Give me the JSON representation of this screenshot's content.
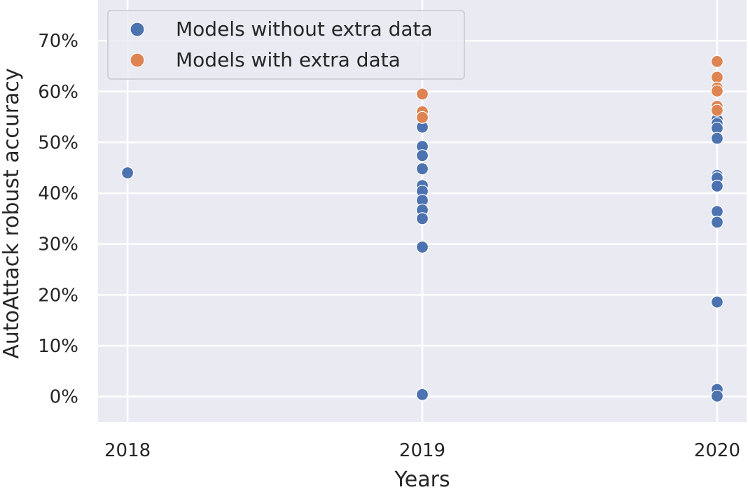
{
  "chart_data": {
    "type": "scatter",
    "xlabel": "Years",
    "ylabel": "AutoAttack robust accuracy",
    "x_ticks": [
      "2018",
      "2019",
      "2020"
    ],
    "y_ticks": [
      "0%",
      "10%",
      "20%",
      "30%",
      "40%",
      "50%",
      "60%",
      "70%"
    ],
    "y_tick_values": [
      0,
      10,
      20,
      30,
      40,
      50,
      60,
      70
    ],
    "xlim": [
      2017.9,
      2020.1
    ],
    "ylim": [
      -5,
      78
    ],
    "grid": true,
    "legend_position": "top-left",
    "series": [
      {
        "name": "Models without extra data",
        "color": "#4c72b0",
        "points": [
          {
            "x": 2018,
            "y": 44.0
          },
          {
            "x": 2019,
            "y": 53.0
          },
          {
            "x": 2019,
            "y": 49.2
          },
          {
            "x": 2019,
            "y": 47.4
          },
          {
            "x": 2019,
            "y": 44.8
          },
          {
            "x": 2019,
            "y": 41.5
          },
          {
            "x": 2019,
            "y": 40.4
          },
          {
            "x": 2019,
            "y": 38.6
          },
          {
            "x": 2019,
            "y": 36.7
          },
          {
            "x": 2019,
            "y": 35.0
          },
          {
            "x": 2019,
            "y": 29.4
          },
          {
            "x": 2019,
            "y": 0.4
          },
          {
            "x": 2020,
            "y": 54.5
          },
          {
            "x": 2020,
            "y": 53.7
          },
          {
            "x": 2020,
            "y": 52.8
          },
          {
            "x": 2020,
            "y": 50.8
          },
          {
            "x": 2020,
            "y": 43.5
          },
          {
            "x": 2020,
            "y": 43.0
          },
          {
            "x": 2020,
            "y": 41.4
          },
          {
            "x": 2020,
            "y": 36.4
          },
          {
            "x": 2020,
            "y": 34.3
          },
          {
            "x": 2020,
            "y": 18.6
          },
          {
            "x": 2020,
            "y": 1.4
          },
          {
            "x": 2020,
            "y": 0.1
          }
        ]
      },
      {
        "name": "Models with extra data",
        "color": "#dd8452",
        "points": [
          {
            "x": 2019,
            "y": 59.5
          },
          {
            "x": 2019,
            "y": 56.0
          },
          {
            "x": 2019,
            "y": 54.9
          },
          {
            "x": 2020,
            "y": 65.9
          },
          {
            "x": 2020,
            "y": 62.8
          },
          {
            "x": 2020,
            "y": 60.7
          },
          {
            "x": 2020,
            "y": 60.1
          },
          {
            "x": 2020,
            "y": 57.1
          },
          {
            "x": 2020,
            "y": 56.3
          }
        ]
      }
    ]
  }
}
